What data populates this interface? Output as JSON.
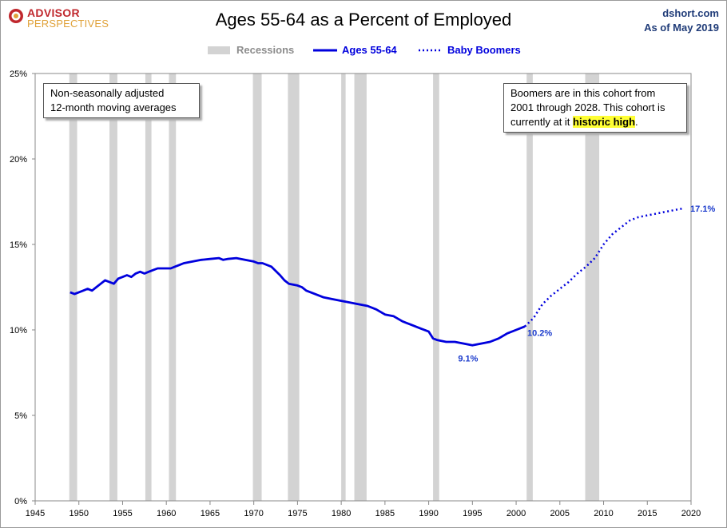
{
  "header": {
    "logo_line1": "ADVISOR",
    "logo_line2": "PERSPECTIVES",
    "title": "Ages 55-64 as a Percent of Employed",
    "source": "dshort.com",
    "as_of": "As of May 2019"
  },
  "legend": {
    "recessions": "Recessions",
    "ages": "Ages 55-64",
    "boomers": "Baby Boomers"
  },
  "notes": {
    "left_line1": "Non-seasonally adjusted",
    "left_line2": "12-month moving averages",
    "right_line1": "Boomers are in this cohort from",
    "right_line2": "2001  through 2028.  This cohort is",
    "right_line3_pre": "currently at it ",
    "right_line3_hl": "historic high",
    "right_line3_post": "."
  },
  "colors": {
    "series": "#0000dd",
    "recession": "#d3d3d3",
    "label": "#1a3acc",
    "highlight": "#ffff33"
  },
  "chart_data": {
    "type": "line",
    "title": "Ages 55-64 as a Percent of Employed",
    "xlabel": "",
    "ylabel": "",
    "xlim": [
      1945,
      2020
    ],
    "ylim": [
      0,
      25
    ],
    "x_ticks": [
      "1945",
      "1950",
      "1955",
      "1960",
      "1965",
      "1970",
      "1975",
      "1980",
      "1985",
      "1990",
      "1995",
      "2000",
      "2005",
      "2010",
      "2015",
      "2020"
    ],
    "y_ticks": [
      "0%",
      "5%",
      "10%",
      "15%",
      "20%",
      "25%"
    ],
    "grid": false,
    "legend_position": "top-center",
    "recessions": [
      [
        1948.9,
        1949.8
      ],
      [
        1953.5,
        1954.4
      ],
      [
        1957.6,
        1958.3
      ],
      [
        1960.3,
        1961.1
      ],
      [
        1969.9,
        1970.9
      ],
      [
        1973.9,
        1975.2
      ],
      [
        1980.0,
        1980.5
      ],
      [
        1981.5,
        1982.9
      ],
      [
        1990.5,
        1991.2
      ],
      [
        2001.2,
        2001.9
      ],
      [
        2007.9,
        2009.5
      ]
    ],
    "series": [
      {
        "name": "Ages 55-64",
        "style": "solid",
        "x": [
          1949,
          1949.5,
          1950,
          1950.5,
          1951,
          1951.5,
          1952,
          1952.5,
          1953,
          1953.5,
          1954,
          1954.5,
          1955,
          1955.5,
          1956,
          1956.5,
          1957,
          1957.5,
          1958,
          1958.5,
          1959,
          1959.5,
          1960,
          1960.5,
          1961,
          1961.5,
          1962,
          1963,
          1964,
          1965,
          1966,
          1966.5,
          1967,
          1968,
          1969,
          1970,
          1970.5,
          1971,
          1972,
          1973,
          1973.5,
          1974,
          1975,
          1975.5,
          1976,
          1977,
          1978,
          1979,
          1980,
          1981,
          1982,
          1983,
          1984,
          1985,
          1986,
          1987,
          1988,
          1989,
          1990,
          1990.5,
          1991,
          1992,
          1993,
          1994,
          1995,
          1996,
          1997,
          1998,
          1999,
          2000,
          2001
        ],
        "values": [
          12.2,
          12.1,
          12.2,
          12.3,
          12.4,
          12.3,
          12.5,
          12.7,
          12.9,
          12.8,
          12.7,
          13.0,
          13.1,
          13.2,
          13.1,
          13.3,
          13.4,
          13.3,
          13.4,
          13.5,
          13.6,
          13.6,
          13.6,
          13.6,
          13.7,
          13.8,
          13.9,
          14.0,
          14.1,
          14.15,
          14.2,
          14.1,
          14.15,
          14.2,
          14.1,
          14.0,
          13.9,
          13.9,
          13.7,
          13.2,
          12.9,
          12.7,
          12.6,
          12.5,
          12.3,
          12.1,
          11.9,
          11.8,
          11.7,
          11.6,
          11.5,
          11.4,
          11.2,
          10.9,
          10.8,
          10.5,
          10.3,
          10.1,
          9.9,
          9.5,
          9.4,
          9.3,
          9.3,
          9.2,
          9.1,
          9.2,
          9.3,
          9.5,
          9.8,
          10.0,
          10.2
        ]
      },
      {
        "name": "Baby Boomers",
        "style": "dotted",
        "x": [
          2001,
          2002,
          2003,
          2004,
          2005,
          2006,
          2007,
          2008,
          2009,
          2010,
          2011,
          2012,
          2013,
          2014,
          2015,
          2016,
          2017,
          2018,
          2019
        ],
        "values": [
          10.2,
          10.7,
          11.5,
          12.0,
          12.4,
          12.8,
          13.3,
          13.7,
          14.2,
          15.0,
          15.6,
          16.0,
          16.4,
          16.6,
          16.7,
          16.8,
          16.9,
          17.0,
          17.1
        ]
      }
    ],
    "annotations": [
      {
        "x": 1994.5,
        "y": 9.1,
        "label": "9.1%"
      },
      {
        "x": 2001,
        "y": 10.2,
        "label": "10.2%"
      },
      {
        "x": 2019,
        "y": 17.1,
        "label": "17.1%"
      }
    ]
  }
}
